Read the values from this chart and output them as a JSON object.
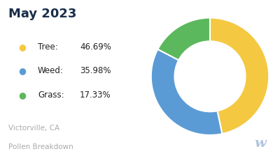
{
  "title": "May 2023",
  "title_color": "#1a2e4a",
  "title_fontsize": 13,
  "legend_labels": [
    "Tree:",
    "Weed:",
    "Grass:"
  ],
  "legend_values": [
    "46.69%",
    "35.98%",
    "17.33%"
  ],
  "slices": [
    46.69,
    35.98,
    17.33
  ],
  "colors": [
    "#f5c842",
    "#5b9bd5",
    "#5cb85c"
  ],
  "subtitle_line1": "Victorville, CA",
  "subtitle_line2": "Pollen Breakdown",
  "subtitle_color": "#aaaaaa",
  "background_color": "#ffffff",
  "donut_width": 0.4
}
